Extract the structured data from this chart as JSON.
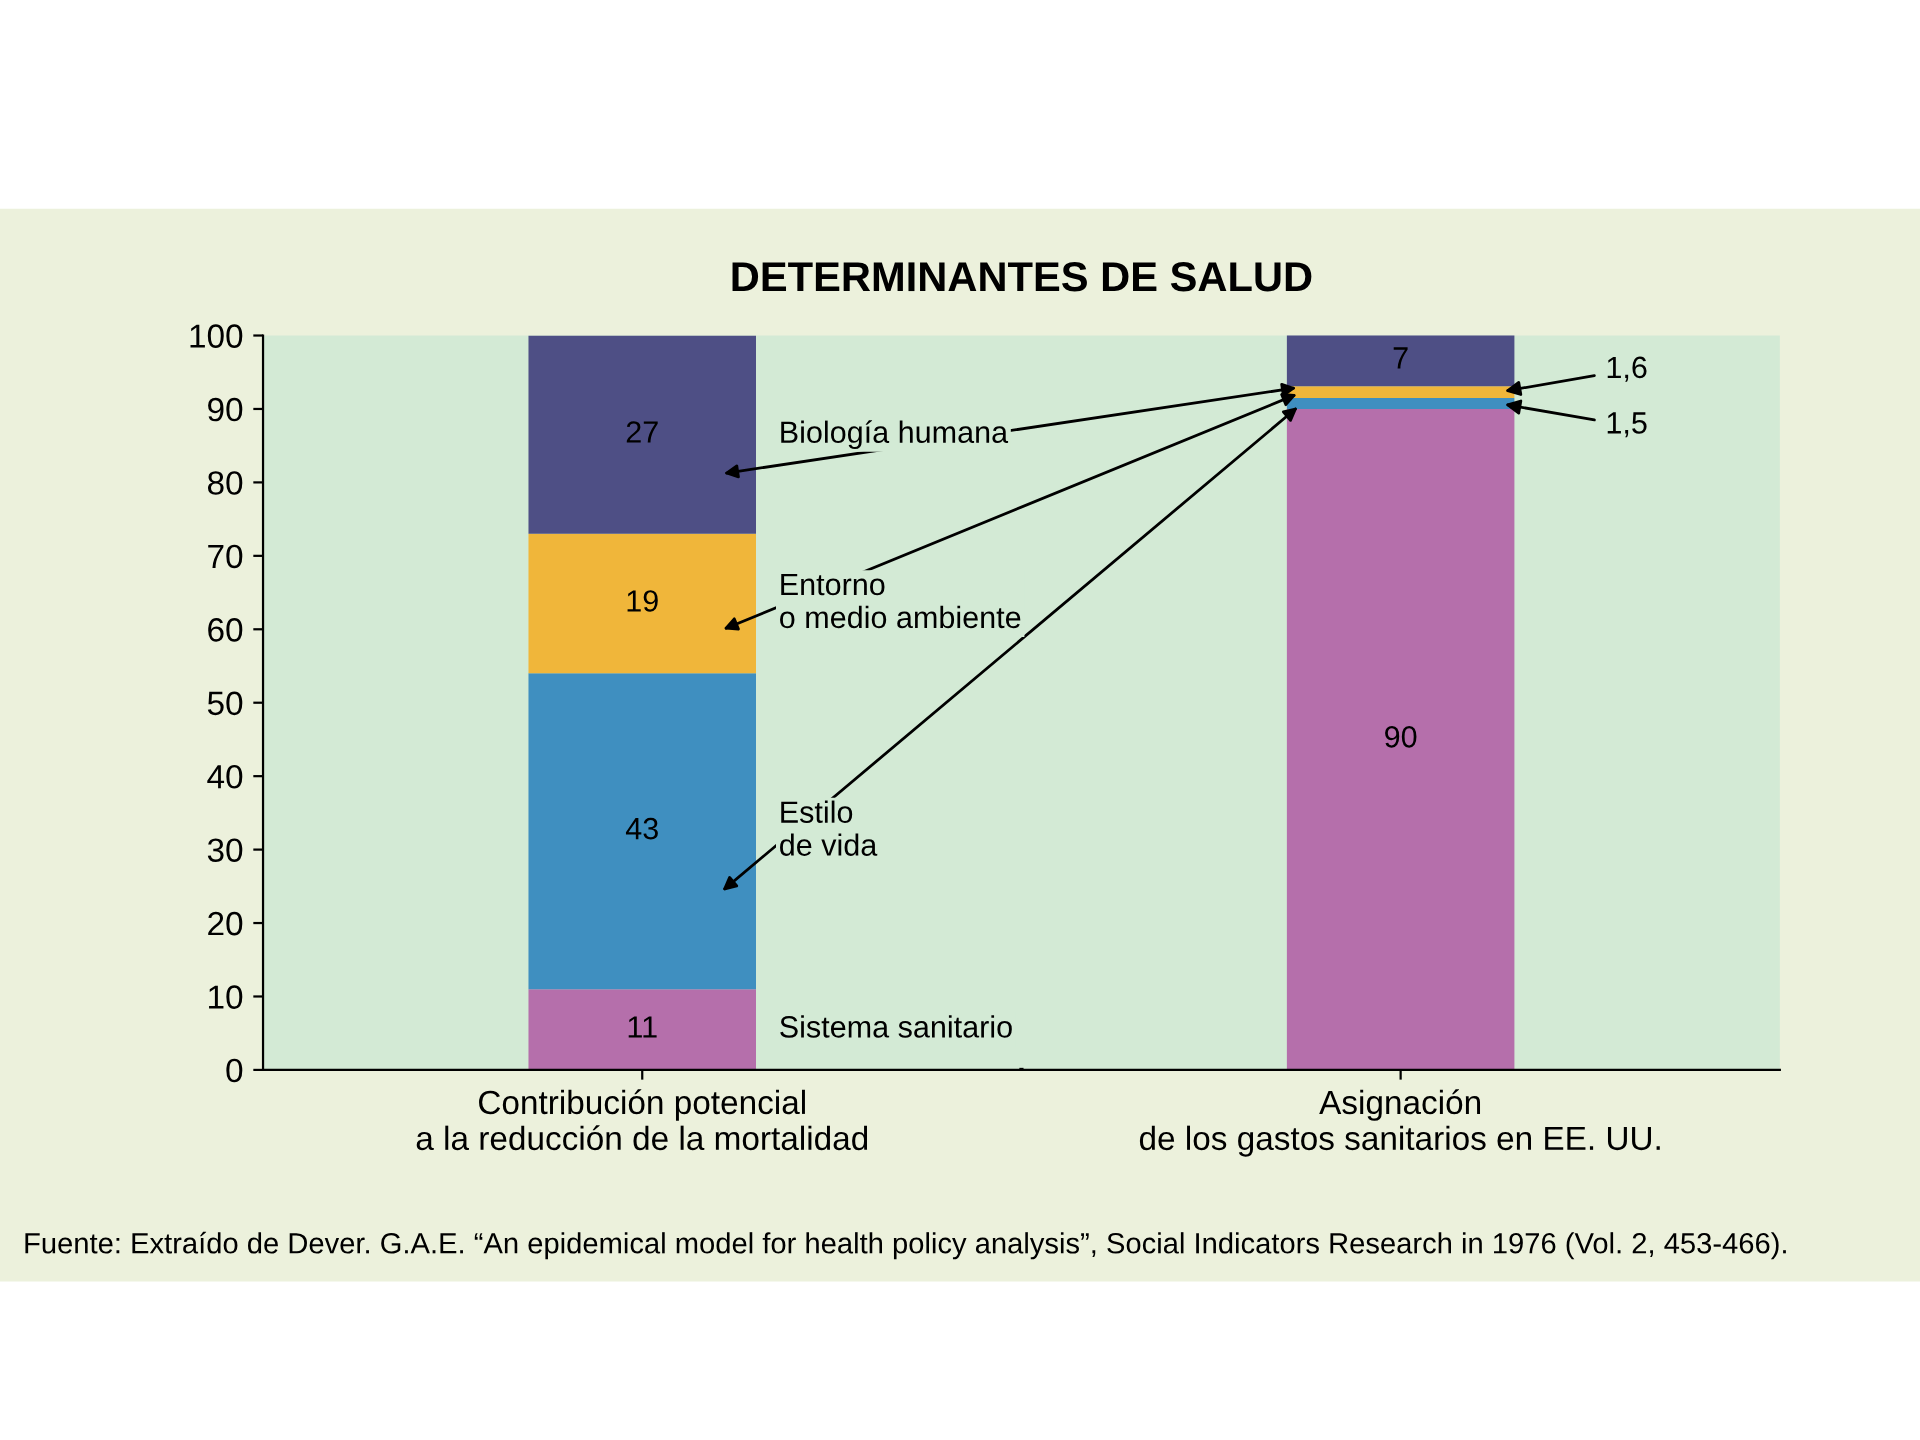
{
  "chart_data": {
    "type": "bar",
    "stacked": true,
    "title": "DETERMINANTES DE SALUD",
    "categories": [
      "Contribución potencial\na la reducción de la mortalidad",
      "Asignación\nde los gastos sanitarios en EE. UU."
    ],
    "series": [
      {
        "name": "Sistema sanitario",
        "color": "#b56fab",
        "values": [
          11,
          90
        ],
        "value_labels": [
          "11",
          "90"
        ]
      },
      {
        "name": "Estilo\nde vida",
        "color": "#3f8fc0",
        "values": [
          43,
          1.5
        ],
        "value_labels": [
          "43",
          "1,5"
        ]
      },
      {
        "name": "Entorno\no medio ambiente",
        "color": "#f0b63a",
        "values": [
          19,
          1.6
        ],
        "value_labels": [
          "19",
          "1,6"
        ]
      },
      {
        "name": "Biología humana",
        "color": "#4e4f85",
        "values": [
          27,
          7
        ],
        "value_labels": [
          "27",
          "7"
        ]
      }
    ],
    "ylim": [
      0,
      100
    ],
    "yticks": [
      0,
      10,
      20,
      30,
      40,
      50,
      60,
      70,
      80,
      90,
      100
    ],
    "grid": false,
    "legend": false,
    "annotations": [
      "Fuente: Extraído de Dever. G.A.E. “An epidemical model for health policy analysis”, Social Indicators Research in 1976 (Vol. 2, 453-466)."
    ]
  }
}
